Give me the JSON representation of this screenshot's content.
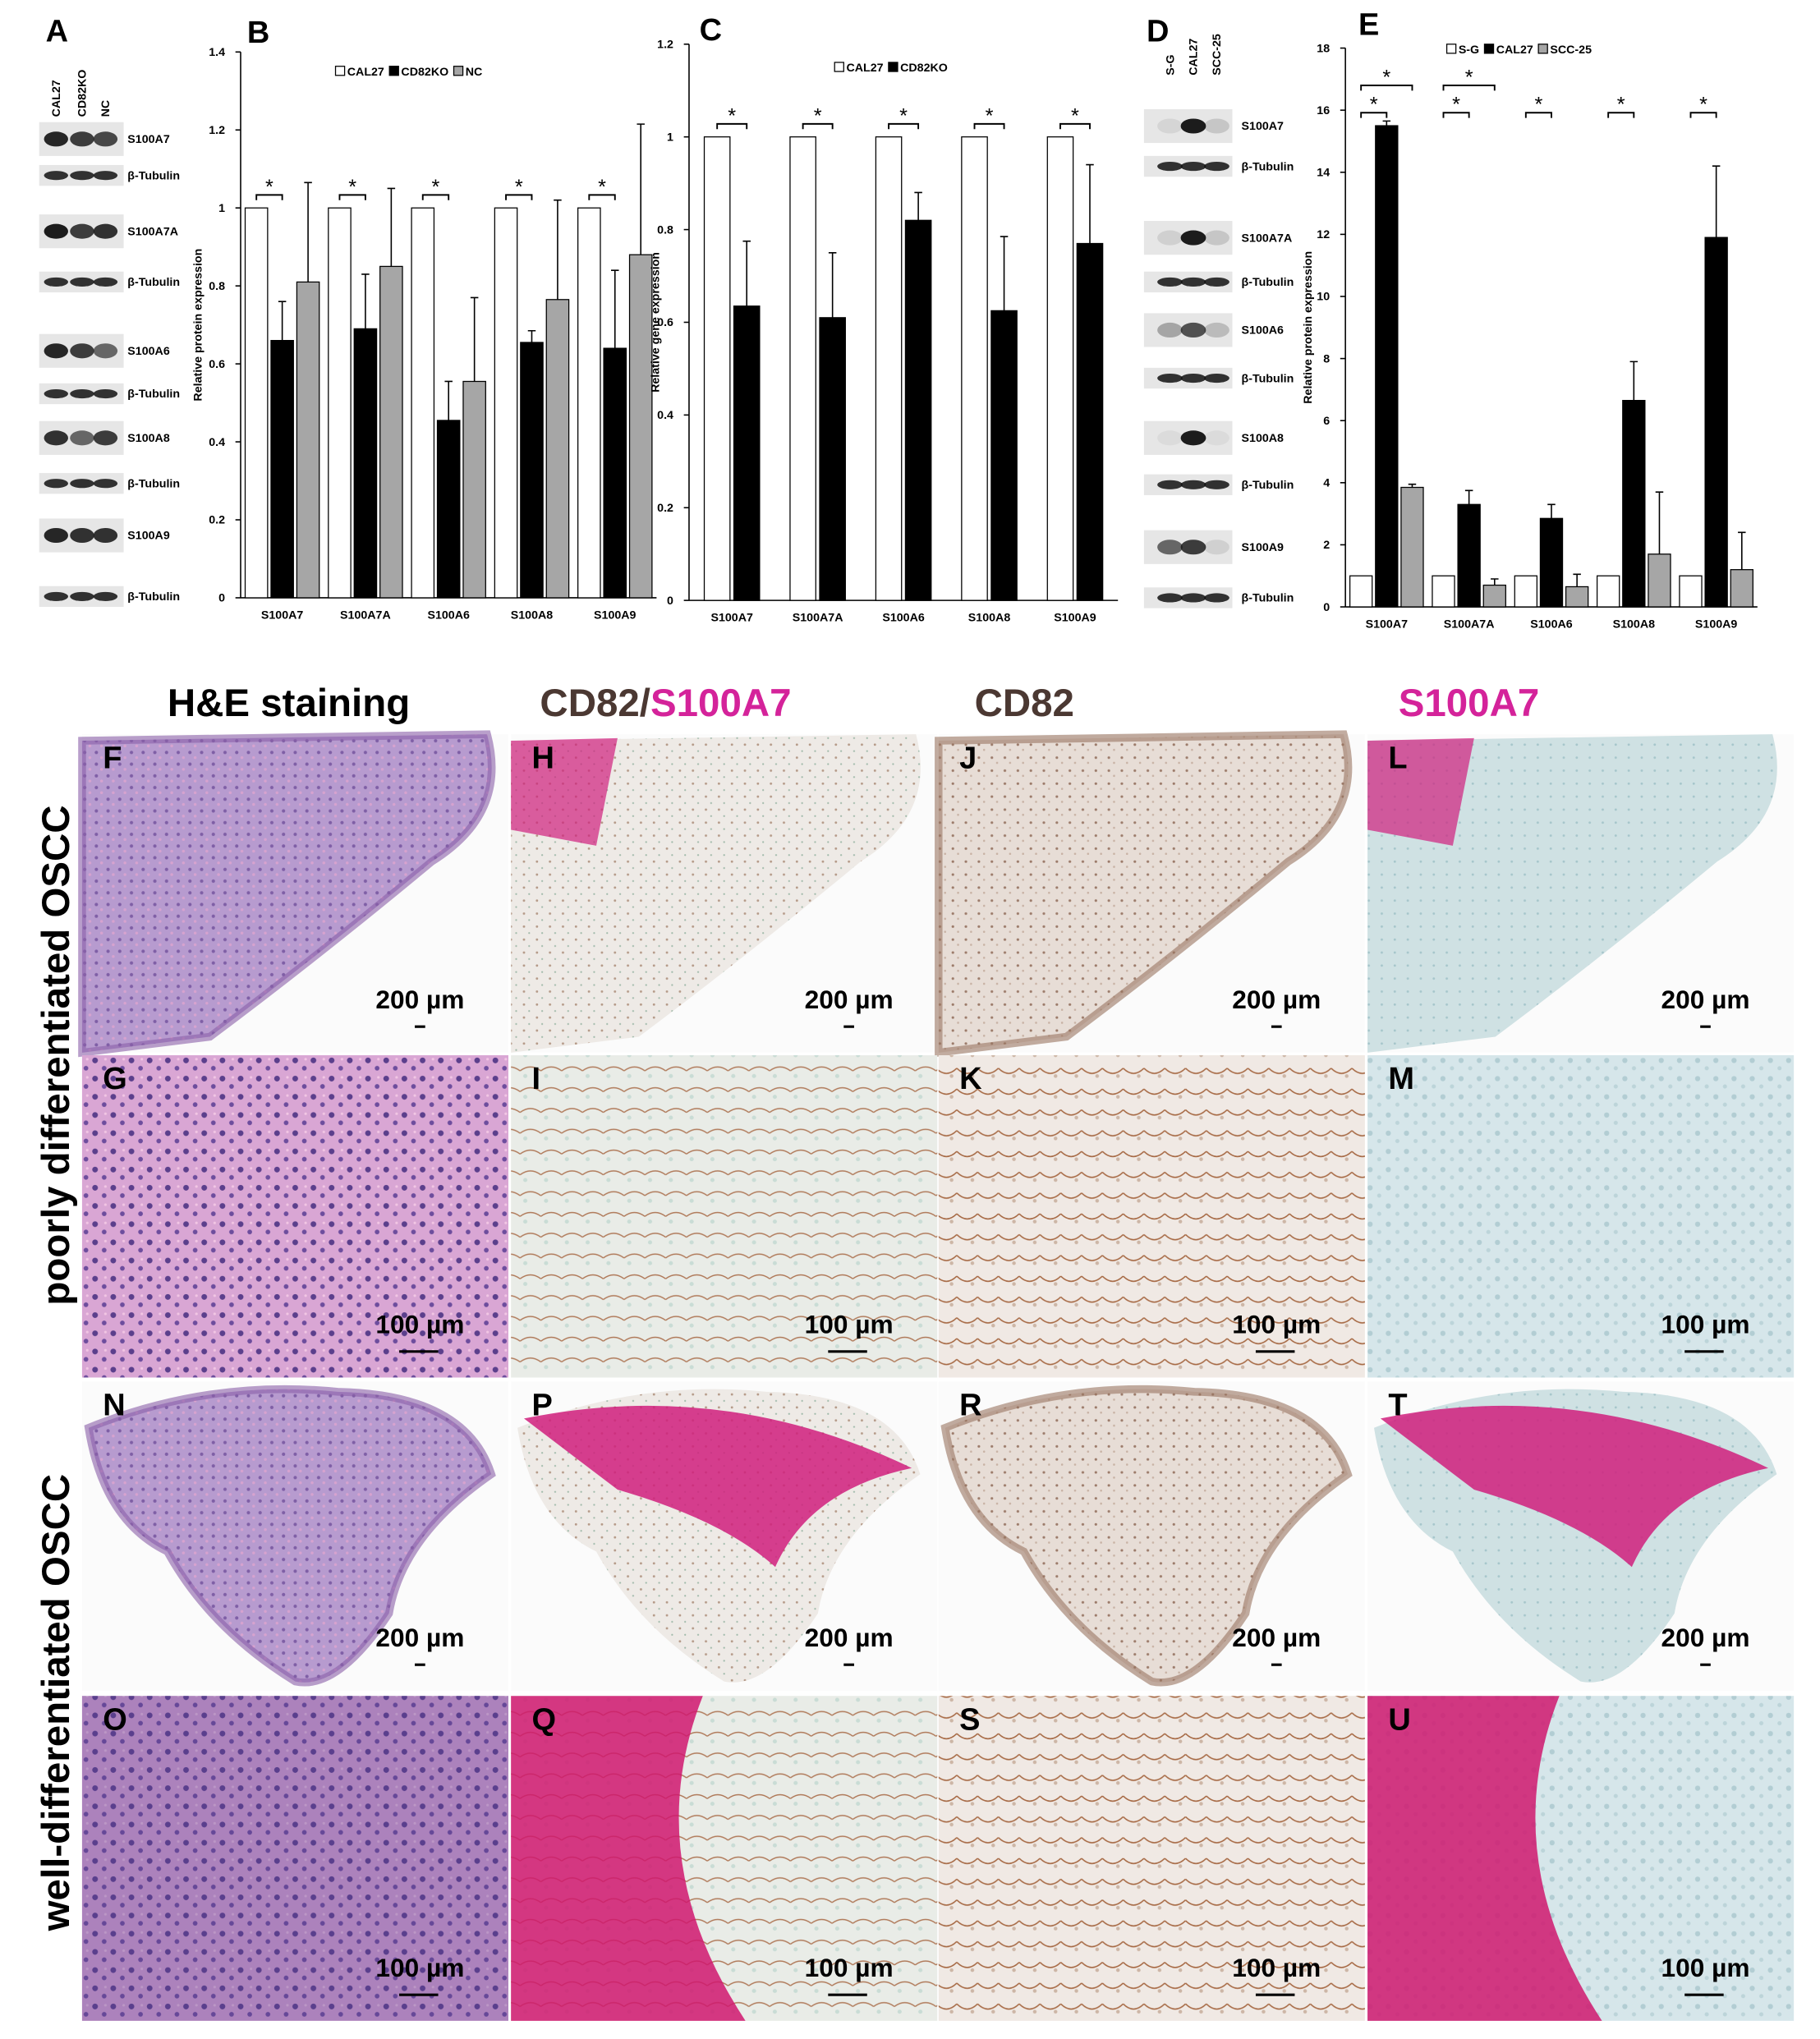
{
  "blot_a": {
    "letter": "A",
    "lanes": [
      "CAL27",
      "CD82KO",
      "NC"
    ],
    "bands": [
      "S100A7",
      "β-Tubulin",
      "S100A7A",
      "β-Tubulin",
      "S100A6",
      "β-Tubulin",
      "S100A8",
      "β-Tubulin",
      "S100A9",
      "β-Tubulin"
    ]
  },
  "blot_d": {
    "letter": "D",
    "lanes": [
      "S-G",
      "CAL27",
      "SCC-25"
    ],
    "bands": [
      "S100A7",
      "β-Tubulin",
      "S100A7A",
      "β-Tubulin",
      "S100A6",
      "β-Tubulin",
      "S100A8",
      "β-Tubulin",
      "S100A9",
      "β-Tubulin"
    ]
  },
  "chart_data": [
    {
      "letter": "B",
      "type": "bar",
      "y_label": "Relative protein expression",
      "categories": [
        "S100A7",
        "S100A7A",
        "S100A6",
        "S100A8",
        "S100A9"
      ],
      "series": [
        {
          "name": "CAL27",
          "color": "#ffffff",
          "values": [
            1,
            1,
            1,
            1,
            1
          ]
        },
        {
          "name": "CD82KO",
          "color": "#000000",
          "values": [
            0.66,
            0.69,
            0.455,
            0.655,
            0.64
          ],
          "errors": [
            0.1,
            0.14,
            0.1,
            0.03,
            0.2
          ]
        },
        {
          "name": "NC",
          "color": "#a6a6a6",
          "values": [
            0.81,
            0.85,
            0.555,
            0.765,
            0.88
          ],
          "errors": [
            0.255,
            0.2,
            0.215,
            0.255,
            0.335
          ]
        }
      ],
      "ylim": [
        0,
        1.4
      ],
      "yticks": [
        0,
        0.2,
        0.4,
        0.6,
        0.8,
        1,
        1.2,
        1.4
      ],
      "significance": [
        [
          "*"
        ],
        [
          "*"
        ],
        [
          "*"
        ],
        [
          "*"
        ],
        [
          "*"
        ]
      ]
    },
    {
      "letter": "C",
      "type": "bar",
      "y_label": "Relative gene expression",
      "categories": [
        "S100A7",
        "S100A7A",
        "S100A6",
        "S100A8",
        "S100A9"
      ],
      "series": [
        {
          "name": "CAL27",
          "color": "#ffffff",
          "values": [
            1,
            1,
            1,
            1,
            1
          ]
        },
        {
          "name": "CD82KO",
          "color": "#000000",
          "values": [
            0.635,
            0.61,
            0.82,
            0.625,
            0.77
          ],
          "errors": [
            0.14,
            0.14,
            0.06,
            0.16,
            0.17
          ]
        }
      ],
      "ylim": [
        0,
        1.2
      ],
      "yticks": [
        0,
        0.2,
        0.4,
        0.6,
        0.8,
        1,
        1.2
      ],
      "significance": [
        [
          "*"
        ],
        [
          "*"
        ],
        [
          "*"
        ],
        [
          "*"
        ],
        [
          "*"
        ]
      ]
    },
    {
      "letter": "E",
      "type": "bar",
      "y_label": "Relative protein expression",
      "categories": [
        "S100A7",
        "S100A7A",
        "S100A6",
        "S100A8",
        "S100A9"
      ],
      "series": [
        {
          "name": "S-G",
          "color": "#ffffff",
          "values": [
            1,
            1,
            1,
            1,
            1
          ]
        },
        {
          "name": "CAL27",
          "color": "#000000",
          "values": [
            15.5,
            3.3,
            2.85,
            6.65,
            11.9
          ],
          "errors": [
            0.15,
            0.45,
            0.45,
            1.25,
            2.3
          ]
        },
        {
          "name": "SCC-25",
          "color": "#a6a6a6",
          "values": [
            3.85,
            0.7,
            0.65,
            1.7,
            1.2
          ],
          "errors": [
            0.1,
            0.2,
            0.4,
            2.0,
            1.2
          ]
        }
      ],
      "ylim": [
        0,
        18
      ],
      "yticks": [
        0,
        2,
        4,
        6,
        8,
        10,
        12,
        14,
        16,
        18
      ],
      "significance": [
        [
          "*",
          "*"
        ],
        [
          "*",
          "*"
        ],
        [
          "*"
        ],
        [
          "*"
        ],
        [
          "*"
        ]
      ]
    }
  ],
  "histology": {
    "column_titles": [
      [
        "H&E staining"
      ],
      [
        "CD82/",
        "S100A7"
      ],
      [
        "CD82"
      ],
      [
        "S100A7"
      ]
    ],
    "column_title_colors": [
      [
        "#000000"
      ],
      [
        "#4b3832",
        "#d4239a"
      ],
      [
        "#4b3832"
      ],
      [
        "#d4239a"
      ]
    ],
    "row_labels": [
      "poorly differentiated OSCC",
      "well-differentiated OSCC"
    ],
    "panels": [
      [
        {
          "letter": "F",
          "scale": "200 µm"
        },
        {
          "letter": "H",
          "scale": "200 µm"
        },
        {
          "letter": "J",
          "scale": "200 µm"
        },
        {
          "letter": "L",
          "scale": "200 µm"
        }
      ],
      [
        {
          "letter": "G",
          "scale": "100 µm"
        },
        {
          "letter": "I",
          "scale": "100 µm"
        },
        {
          "letter": "K",
          "scale": "100 µm"
        },
        {
          "letter": "M",
          "scale": "100 µm"
        }
      ],
      [
        {
          "letter": "N",
          "scale": "200 µm"
        },
        {
          "letter": "P",
          "scale": "200 µm"
        },
        {
          "letter": "R",
          "scale": "200 µm"
        },
        {
          "letter": "T",
          "scale": "200 µm"
        }
      ],
      [
        {
          "letter": "O",
          "scale": "100 µm"
        },
        {
          "letter": "Q",
          "scale": "100 µm"
        },
        {
          "letter": "S",
          "scale": "100 µm"
        },
        {
          "letter": "U",
          "scale": "100 µm"
        }
      ]
    ]
  }
}
